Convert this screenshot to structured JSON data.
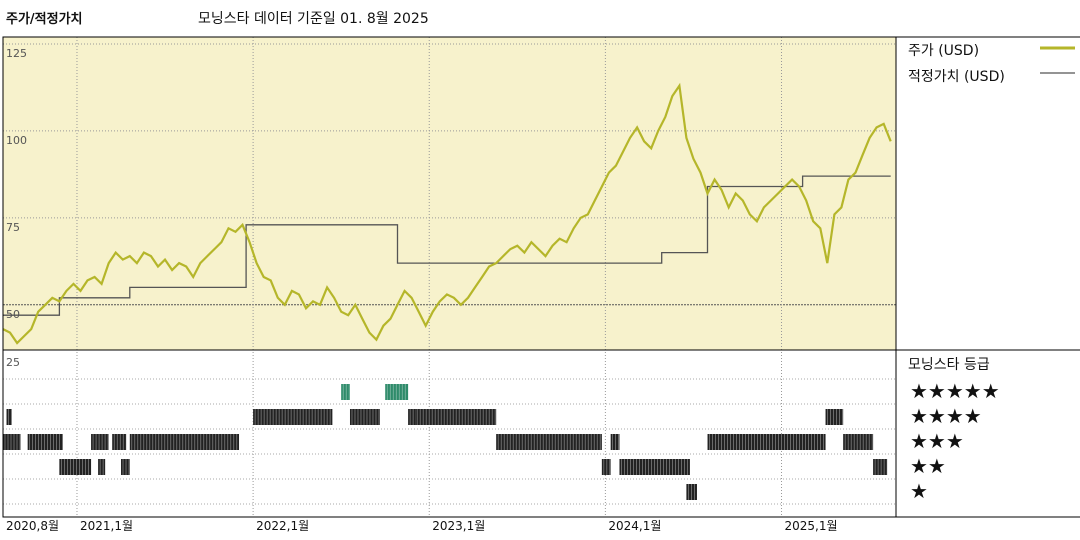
{
  "header": {
    "title": "주가/적정가치",
    "subtitle": "모닝스타 데이터 기준일 01. 8월 2025"
  },
  "legend": {
    "price_label": "주가 (USD)",
    "fair_value_label": "적정가치 (USD)",
    "price_color": "#b5b62a",
    "fair_value_color": "#555555"
  },
  "rating_panel": {
    "title": "모닝스타 등급",
    "stars": [
      "★★★★★",
      "★★★★",
      "★★★",
      "★★",
      "★"
    ],
    "axis_label": "25",
    "rating_colors": {
      "5": "#2e8b6a",
      "4": "#222222",
      "3": "#222222",
      "2": "#222222",
      "1": "#222222"
    },
    "segments": [
      {
        "start": 2020.6,
        "end": 2020.63,
        "stars": 4
      },
      {
        "start": 2020.58,
        "end": 2020.68,
        "stars": 3
      },
      {
        "start": 2020.72,
        "end": 2020.92,
        "stars": 3
      },
      {
        "start": 2020.9,
        "end": 2021.08,
        "stars": 2
      },
      {
        "start": 2021.12,
        "end": 2021.16,
        "stars": 2
      },
      {
        "start": 2021.25,
        "end": 2021.3,
        "stars": 2
      },
      {
        "start": 2021.08,
        "end": 2021.18,
        "stars": 3
      },
      {
        "start": 2021.2,
        "end": 2021.28,
        "stars": 3
      },
      {
        "start": 2021.3,
        "end": 2021.92,
        "stars": 3
      },
      {
        "start": 2022.0,
        "end": 2022.45,
        "stars": 4
      },
      {
        "start": 2022.5,
        "end": 2022.55,
        "stars": 5
      },
      {
        "start": 2022.55,
        "end": 2022.72,
        "stars": 4
      },
      {
        "start": 2022.75,
        "end": 2022.88,
        "stars": 5
      },
      {
        "start": 2022.88,
        "end": 2022.92,
        "stars": 4
      },
      {
        "start": 2022.92,
        "end": 2023.38,
        "stars": 4
      },
      {
        "start": 2023.38,
        "end": 2023.98,
        "stars": 3
      },
      {
        "start": 2024.03,
        "end": 2024.08,
        "stars": 3
      },
      {
        "start": 2023.98,
        "end": 2024.03,
        "stars": 2
      },
      {
        "start": 2024.08,
        "end": 2024.48,
        "stars": 2
      },
      {
        "start": 2024.46,
        "end": 2024.52,
        "stars": 1
      },
      {
        "start": 2024.58,
        "end": 2025.25,
        "stars": 3
      },
      {
        "start": 2025.25,
        "end": 2025.35,
        "stars": 4
      },
      {
        "start": 2025.35,
        "end": 2025.52,
        "stars": 3
      },
      {
        "start": 2025.52,
        "end": 2025.6,
        "stars": 2
      }
    ]
  },
  "chart_data": {
    "type": "line",
    "title": "",
    "xlabel": "",
    "ylabel": "",
    "x_ticks": [
      {
        "value": 2020.58,
        "label": "2020,8월"
      },
      {
        "value": 2021.0,
        "label": "2021,1월"
      },
      {
        "value": 2022.0,
        "label": "2022,1월"
      },
      {
        "value": 2023.0,
        "label": "2023,1월"
      },
      {
        "value": 2024.0,
        "label": "2024,1월"
      },
      {
        "value": 2025.0,
        "label": "2025,1월"
      }
    ],
    "xlim": [
      2020.58,
      2025.65
    ],
    "ylim": [
      37,
      127
    ],
    "y_ticks": [
      50,
      75,
      100,
      125
    ],
    "y_tick_labels": [
      "50",
      "75",
      "100",
      "125"
    ],
    "grid": true,
    "legend_position": "right",
    "series": [
      {
        "name": "주가 (USD)",
        "x": [
          2020.58,
          2020.62,
          2020.66,
          2020.7,
          2020.74,
          2020.78,
          2020.82,
          2020.86,
          2020.9,
          2020.94,
          2020.98,
          2021.02,
          2021.06,
          2021.1,
          2021.14,
          2021.18,
          2021.22,
          2021.26,
          2021.3,
          2021.34,
          2021.38,
          2021.42,
          2021.46,
          2021.5,
          2021.54,
          2021.58,
          2021.62,
          2021.66,
          2021.7,
          2021.74,
          2021.78,
          2021.82,
          2021.86,
          2021.9,
          2021.94,
          2021.98,
          2022.02,
          2022.06,
          2022.1,
          2022.14,
          2022.18,
          2022.22,
          2022.26,
          2022.3,
          2022.34,
          2022.38,
          2022.42,
          2022.46,
          2022.5,
          2022.54,
          2022.58,
          2022.62,
          2022.66,
          2022.7,
          2022.74,
          2022.78,
          2022.82,
          2022.86,
          2022.9,
          2022.94,
          2022.98,
          2023.02,
          2023.06,
          2023.1,
          2023.14,
          2023.18,
          2023.22,
          2023.26,
          2023.3,
          2023.34,
          2023.38,
          2023.42,
          2023.46,
          2023.5,
          2023.54,
          2023.58,
          2023.62,
          2023.66,
          2023.7,
          2023.74,
          2023.78,
          2023.82,
          2023.86,
          2023.9,
          2023.94,
          2023.98,
          2024.02,
          2024.06,
          2024.1,
          2024.14,
          2024.18,
          2024.22,
          2024.26,
          2024.3,
          2024.34,
          2024.38,
          2024.42,
          2024.46,
          2024.5,
          2024.54,
          2024.58,
          2024.62,
          2024.66,
          2024.7,
          2024.74,
          2024.78,
          2024.82,
          2024.86,
          2024.9,
          2024.94,
          2024.98,
          2025.02,
          2025.06,
          2025.1,
          2025.14,
          2025.18,
          2025.22,
          2025.26,
          2025.3,
          2025.34,
          2025.38,
          2025.42,
          2025.46,
          2025.5,
          2025.54,
          2025.58,
          2025.62
        ],
        "values": [
          43,
          42,
          39,
          41,
          43,
          48,
          50,
          52,
          51,
          54,
          56,
          54,
          57,
          58,
          56,
          62,
          65,
          63,
          64,
          62,
          65,
          64,
          61,
          63,
          60,
          62,
          61,
          58,
          62,
          64,
          66,
          68,
          72,
          71,
          73,
          68,
          62,
          58,
          57,
          52,
          50,
          54,
          53,
          49,
          51,
          50,
          55,
          52,
          48,
          47,
          50,
          46,
          42,
          40,
          44,
          46,
          50,
          54,
          52,
          48,
          44,
          48,
          51,
          53,
          52,
          50,
          52,
          55,
          58,
          61,
          62,
          64,
          66,
          67,
          65,
          68,
          66,
          64,
          67,
          69,
          68,
          72,
          75,
          76,
          80,
          84,
          88,
          90,
          94,
          98,
          101,
          97,
          95,
          100,
          104,
          110,
          113,
          98,
          92,
          88,
          82,
          86,
          83,
          78,
          82,
          80,
          76,
          74,
          78,
          80,
          82,
          84,
          86,
          84,
          80,
          74,
          72,
          62,
          76,
          78,
          86,
          88,
          93,
          98,
          101,
          102,
          97
        ]
      },
      {
        "name": "적정가치 (USD)",
        "step": true,
        "x": [
          2020.58,
          2020.78,
          2020.9,
          2021.04,
          2021.3,
          2021.96,
          2022.82,
          2023.6,
          2024.32,
          2024.58,
          2025.12,
          2025.62
        ],
        "values": [
          47,
          47,
          52,
          52,
          55,
          73,
          62,
          62,
          65,
          84,
          87,
          87
        ]
      }
    ]
  }
}
